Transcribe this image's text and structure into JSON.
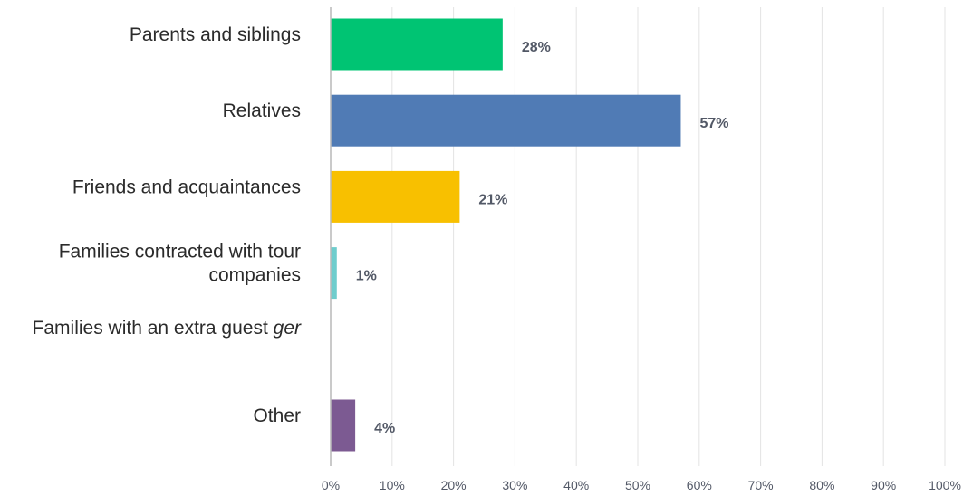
{
  "chart_data": {
    "type": "bar",
    "orientation": "horizontal",
    "categories": [
      "Parents and siblings",
      "Relatives",
      "Friends and acquaintances",
      "Families contracted with tour companies",
      "Families with an extra guest ger",
      "Other"
    ],
    "category_lines": [
      [
        {
          "text": "Parents and siblings"
        }
      ],
      [
        {
          "text": "Relatives"
        }
      ],
      [
        {
          "text": "Friends and acquaintances"
        }
      ],
      [
        {
          "text": "Families contracted with tour"
        },
        {
          "text": "companies"
        }
      ],
      [
        {
          "text": "Families with an extra guest "
        },
        {
          "text": "ger",
          "italic": true
        }
      ],
      [
        {
          "text": "Other"
        }
      ]
    ],
    "values": [
      28,
      57,
      21,
      1,
      0,
      4
    ],
    "value_labels": [
      "28%",
      "57%",
      "21%",
      "1%",
      "",
      "4%"
    ],
    "colors": [
      "#00c473",
      "#507bb5",
      "#f8c000",
      "#6ecdcd",
      "#cccccc",
      "#7c5a92"
    ],
    "xlim": [
      0,
      100
    ],
    "xticks": [
      0,
      10,
      20,
      30,
      40,
      50,
      60,
      70,
      80,
      90,
      100
    ],
    "xtick_labels": [
      "0%",
      "10%",
      "20%",
      "30%",
      "40%",
      "50%",
      "60%",
      "70%",
      "80%",
      "90%",
      "100%"
    ],
    "grid": true,
    "legend": "none",
    "title": "",
    "xlabel": "",
    "ylabel": ""
  }
}
